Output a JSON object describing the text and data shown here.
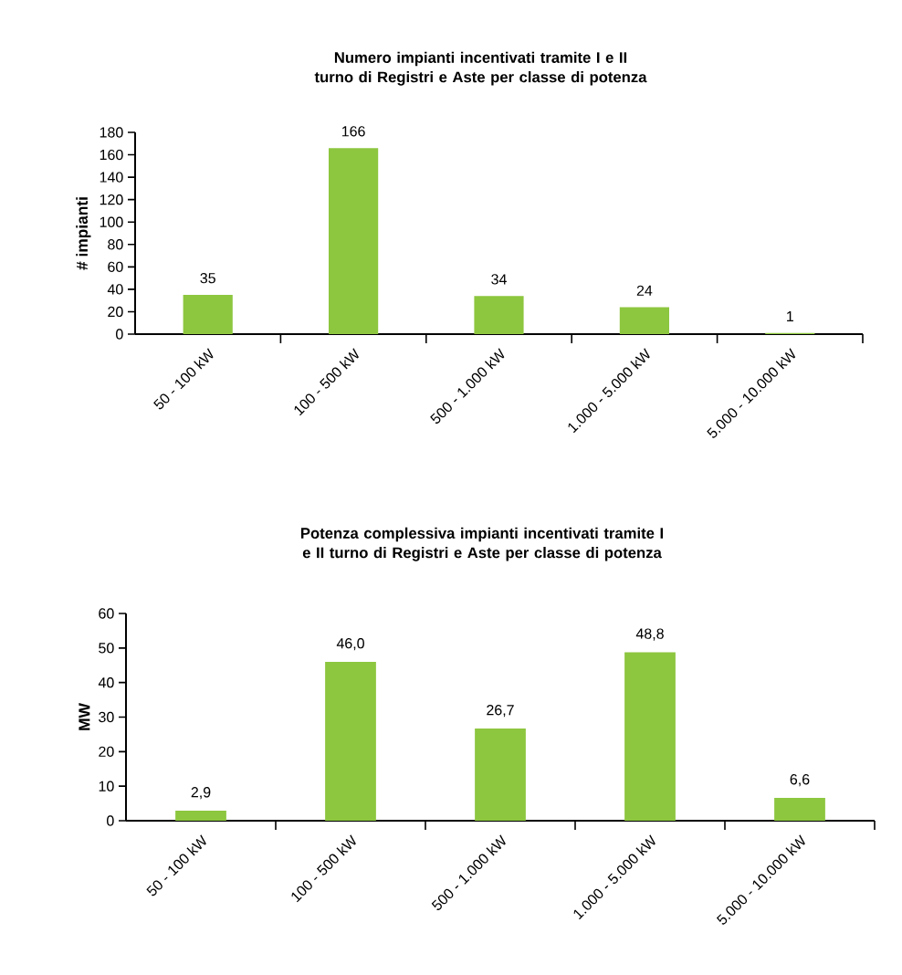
{
  "chart_data": [
    {
      "type": "bar",
      "title": "Numero impianti incentivati tramite I e II turno di Registri e Aste per classe di potenza",
      "ylabel": "# impianti",
      "categories": [
        "50 - 100 kW",
        "100 - 500 kW",
        "500 - 1.000 kW",
        "1.000 - 5.000 kW",
        "5.000 - 10.000 kW"
      ],
      "values": [
        35,
        166,
        34,
        24,
        1
      ],
      "color": "#8dc63f",
      "ylim": [
        0,
        180
      ],
      "yticks": [
        0,
        20,
        40,
        60,
        80,
        100,
        120,
        140,
        160,
        180
      ],
      "data_labels": true,
      "grid": false
    },
    {
      "type": "bar",
      "title": "Potenza complessiva impianti incentivati tramite I e II turno di Registri e Aste per classe di potenza",
      "ylabel": "MW",
      "categories": [
        "50 - 100 kW",
        "100 - 500 kW",
        "500 - 1.000 kW",
        "1.000 - 5.000 kW",
        "5.000 - 10.000 kW"
      ],
      "values": [
        2.9,
        46.0,
        26.7,
        48.8,
        6.6
      ],
      "value_labels": [
        "2,9",
        "46,0",
        "26,7",
        "48,8",
        "6,6"
      ],
      "color": "#8dc63f",
      "ylim": [
        0,
        60
      ],
      "yticks": [
        0,
        10,
        20,
        30,
        40,
        50,
        60
      ],
      "grid": false
    }
  ]
}
